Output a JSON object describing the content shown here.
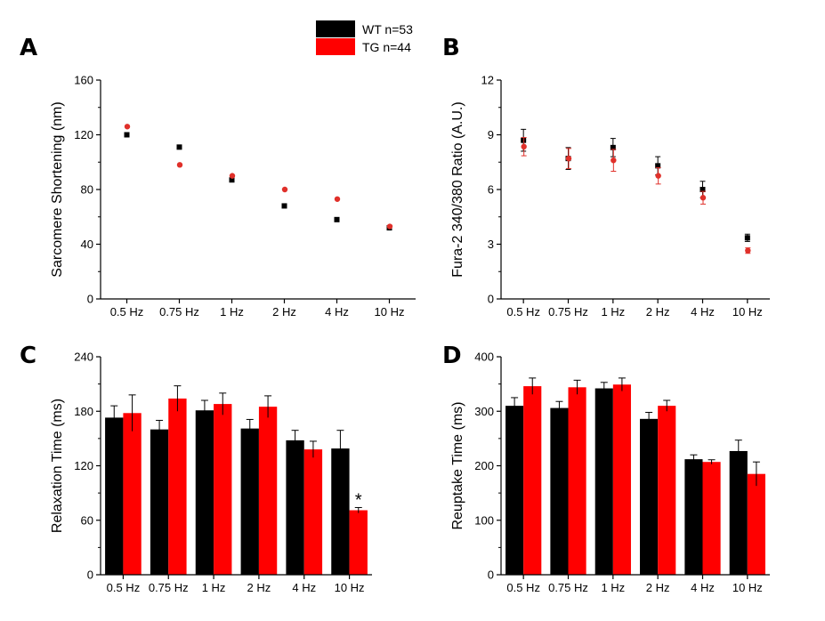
{
  "legend": [
    {
      "label": "WT n=53",
      "color": "#000000"
    },
    {
      "label": "TG n=44",
      "color": "#ff0000"
    }
  ],
  "colors": {
    "wt": "#000000",
    "tg": "#ff0000",
    "tg_point": "#e0302a"
  },
  "chart_data": [
    {
      "panel": "A",
      "type": "scatter",
      "ylabel": "Sarcomere Shortening (nm)",
      "xlabel": "",
      "categories": [
        "0.5 Hz",
        "0.75 Hz",
        "1 Hz",
        "2 Hz",
        "4 Hz",
        "10 Hz"
      ],
      "ylim": [
        0,
        160
      ],
      "yticks": [
        0,
        40,
        80,
        120,
        160
      ],
      "series": [
        {
          "name": "WT n=53",
          "values": [
            120,
            111,
            87,
            68,
            58,
            52
          ],
          "errors": [
            0,
            0,
            0,
            0,
            0,
            0
          ]
        },
        {
          "name": "TG n=44",
          "values": [
            126,
            98,
            90,
            80,
            73,
            53
          ],
          "errors": [
            0,
            0,
            0,
            0,
            0,
            0
          ]
        }
      ]
    },
    {
      "panel": "B",
      "type": "scatter",
      "ylabel": "Fura-2 340/380 Ratio (A.U.)",
      "xlabel": "",
      "categories": [
        "0.5 Hz",
        "0.75 Hz",
        "1 Hz",
        "2 Hz",
        "4 Hz",
        "10 Hz"
      ],
      "ylim": [
        0,
        12
      ],
      "yticks": [
        0,
        3,
        6,
        9,
        12
      ],
      "series": [
        {
          "name": "WT n=53",
          "values": [
            8.7,
            7.7,
            8.3,
            7.3,
            6.0,
            3.35
          ],
          "errors": [
            0.6,
            0.6,
            0.5,
            0.5,
            0.45,
            0.2
          ]
        },
        {
          "name": "TG n=44",
          "values": [
            8.35,
            7.7,
            7.6,
            6.75,
            5.55,
            2.65
          ],
          "errors": [
            0.5,
            0.55,
            0.6,
            0.45,
            0.35,
            0.15
          ]
        }
      ]
    },
    {
      "panel": "C",
      "type": "bar",
      "ylabel": "Relaxation Time (ms)",
      "xlabel": "",
      "categories": [
        "0.5 Hz",
        "0.75 Hz",
        "1 Hz",
        "2 Hz",
        "4 Hz",
        "10 Hz"
      ],
      "ylim": [
        0,
        240
      ],
      "yticks": [
        0,
        60,
        120,
        180,
        240
      ],
      "series": [
        {
          "name": "WT n=53",
          "values": [
            173,
            160,
            181,
            161,
            148,
            139
          ],
          "errors": [
            13,
            10,
            11,
            10,
            11,
            20
          ]
        },
        {
          "name": "TG n=44",
          "values": [
            178,
            194,
            188,
            185,
            138,
            71
          ],
          "errors": [
            20,
            14,
            12,
            12,
            9,
            3
          ]
        }
      ],
      "annotations": [
        {
          "text": "*",
          "category": "10 Hz",
          "series": "TG n=44"
        }
      ]
    },
    {
      "panel": "D",
      "type": "bar",
      "ylabel": "Reuptake Time (ms)",
      "xlabel": "",
      "categories": [
        "0.5 Hz",
        "0.75 Hz",
        "1 Hz",
        "2 Hz",
        "4 Hz",
        "10 Hz"
      ],
      "ylim": [
        0,
        400
      ],
      "yticks": [
        0,
        100,
        200,
        300,
        400
      ],
      "series": [
        {
          "name": "WT n=53",
          "values": [
            310,
            306,
            342,
            286,
            212,
            227
          ],
          "errors": [
            15,
            12,
            11,
            12,
            8,
            20
          ]
        },
        {
          "name": "TG n=44",
          "values": [
            346,
            344,
            349,
            310,
            207,
            185
          ],
          "errors": [
            15,
            13,
            12,
            10,
            4,
            22
          ]
        }
      ]
    }
  ]
}
